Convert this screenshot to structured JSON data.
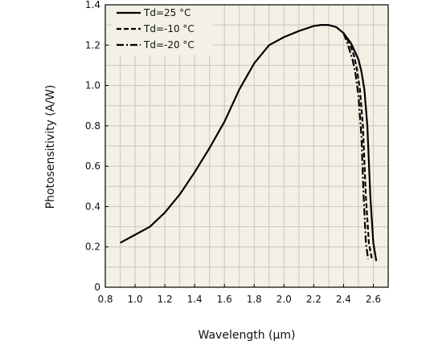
{
  "chart_data": {
    "type": "line",
    "title": "",
    "xlabel": "Wavelength (μm)",
    "ylabel": "Photosensitivity (A/W)",
    "xlim": [
      0.8,
      2.7
    ],
    "ylim": [
      0,
      1.4
    ],
    "x_ticks": [
      {
        "value": 0.8,
        "label": "0.8"
      },
      {
        "value": 1.0,
        "label": "1.0"
      },
      {
        "value": 1.2,
        "label": "1.2"
      },
      {
        "value": 1.4,
        "label": "1.4"
      },
      {
        "value": 1.6,
        "label": "1.6"
      },
      {
        "value": 1.8,
        "label": "1.8"
      },
      {
        "value": 2.0,
        "label": "2.0"
      },
      {
        "value": 2.2,
        "label": "2.2"
      },
      {
        "value": 2.4,
        "label": "2.4"
      },
      {
        "value": 2.6,
        "label": "2.6"
      }
    ],
    "y_ticks": [
      {
        "value": 0,
        "label": "0"
      },
      {
        "value": 0.2,
        "label": "0.2"
      },
      {
        "value": 0.4,
        "label": "0.4"
      },
      {
        "value": 0.6,
        "label": "0.6"
      },
      {
        "value": 0.8,
        "label": "0.8"
      },
      {
        "value": 1.0,
        "label": "1.0"
      },
      {
        "value": 1.2,
        "label": "1.2"
      },
      {
        "value": 1.4,
        "label": "1.4"
      }
    ],
    "grid": true,
    "grid_step": {
      "x": 0.1,
      "y": 0.1
    },
    "legend_position": "top-left",
    "background_color": "#f3f1e6",
    "grid_color": "#c9c6ba",
    "line_color": "#000000",
    "series": [
      {
        "name": "Td=25 °C",
        "style": "solid",
        "points": [
          [
            0.9,
            0.22
          ],
          [
            1.0,
            0.26
          ],
          [
            1.1,
            0.3
          ],
          [
            1.2,
            0.37
          ],
          [
            1.3,
            0.46
          ],
          [
            1.4,
            0.57
          ],
          [
            1.5,
            0.69
          ],
          [
            1.6,
            0.82
          ],
          [
            1.7,
            0.98
          ],
          [
            1.8,
            1.11
          ],
          [
            1.9,
            1.2
          ],
          [
            2.0,
            1.24
          ],
          [
            2.1,
            1.27
          ],
          [
            2.2,
            1.295
          ],
          [
            2.25,
            1.3
          ],
          [
            2.3,
            1.3
          ],
          [
            2.35,
            1.29
          ],
          [
            2.4,
            1.26
          ],
          [
            2.45,
            1.21
          ],
          [
            2.5,
            1.13
          ],
          [
            2.52,
            1.07
          ],
          [
            2.54,
            0.98
          ],
          [
            2.56,
            0.8
          ],
          [
            2.58,
            0.45
          ],
          [
            2.6,
            0.22
          ],
          [
            2.62,
            0.13
          ]
        ]
      },
      {
        "name": "Td=-10 °C",
        "style": "dashed",
        "points": [
          [
            2.4,
            1.26
          ],
          [
            2.44,
            1.21
          ],
          [
            2.47,
            1.15
          ],
          [
            2.49,
            1.08
          ],
          [
            2.51,
            0.98
          ],
          [
            2.53,
            0.8
          ],
          [
            2.55,
            0.45
          ],
          [
            2.57,
            0.22
          ],
          [
            2.59,
            0.14
          ]
        ]
      },
      {
        "name": "Td=-20 °C",
        "style": "dashdot",
        "points": [
          [
            2.4,
            1.26
          ],
          [
            2.43,
            1.2
          ],
          [
            2.46,
            1.13
          ],
          [
            2.48,
            1.06
          ],
          [
            2.5,
            0.95
          ],
          [
            2.52,
            0.75
          ],
          [
            2.535,
            0.45
          ],
          [
            2.55,
            0.22
          ],
          [
            2.565,
            0.14
          ]
        ]
      }
    ]
  }
}
